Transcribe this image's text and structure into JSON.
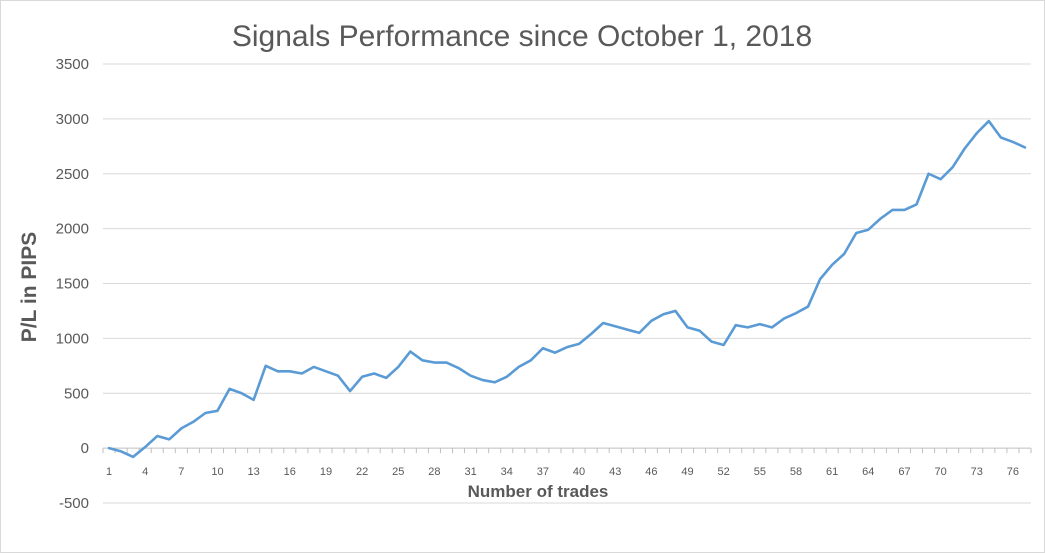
{
  "chart_data": {
    "type": "line",
    "title": "Signals Performance since October 1, 2018",
    "xlabel": "Number of trades",
    "ylabel": "P/L in PIPS",
    "ylim": [
      -500,
      3500
    ],
    "yticks": [
      -500,
      0,
      500,
      1000,
      1500,
      2000,
      2500,
      3000,
      3500
    ],
    "xtick_labels": [
      "1",
      "4",
      "7",
      "10",
      "13",
      "16",
      "19",
      "22",
      "25",
      "28",
      "31",
      "34",
      "37",
      "40",
      "43",
      "46",
      "49",
      "52",
      "55",
      "58",
      "61",
      "64",
      "67",
      "70",
      "73",
      "76"
    ],
    "x": [
      1,
      2,
      3,
      4,
      5,
      6,
      7,
      8,
      9,
      10,
      11,
      12,
      13,
      14,
      15,
      16,
      17,
      18,
      19,
      20,
      21,
      22,
      23,
      24,
      25,
      26,
      27,
      28,
      29,
      30,
      31,
      32,
      33,
      34,
      35,
      36,
      37,
      38,
      39,
      40,
      41,
      42,
      43,
      44,
      45,
      46,
      47,
      48,
      49,
      50,
      51,
      52,
      53,
      54,
      55,
      56,
      57,
      58,
      59,
      60,
      61,
      62,
      63,
      64,
      65,
      66,
      67,
      68,
      69,
      70,
      71,
      72,
      73,
      74,
      75,
      76,
      77
    ],
    "series": [
      {
        "color": "#5b9bd5",
        "values": [
          0,
          -30,
          -80,
          10,
          110,
          80,
          180,
          240,
          320,
          340,
          540,
          500,
          440,
          750,
          700,
          700,
          680,
          740,
          700,
          660,
          520,
          650,
          680,
          640,
          740,
          880,
          800,
          780,
          780,
          730,
          660,
          620,
          600,
          650,
          740,
          800,
          910,
          870,
          920,
          950,
          1040,
          1140,
          1110,
          1080,
          1050,
          1160,
          1220,
          1250,
          1100,
          1070,
          970,
          940,
          1120,
          1100,
          1130,
          1100,
          1180,
          1230,
          1290,
          1540,
          1670,
          1770,
          1960,
          1990,
          2090,
          2170,
          2170,
          2220,
          2500,
          2450,
          2560,
          2730,
          2870,
          2980,
          2830,
          2790,
          2740
        ]
      }
    ],
    "grid": true,
    "legend": "none"
  }
}
